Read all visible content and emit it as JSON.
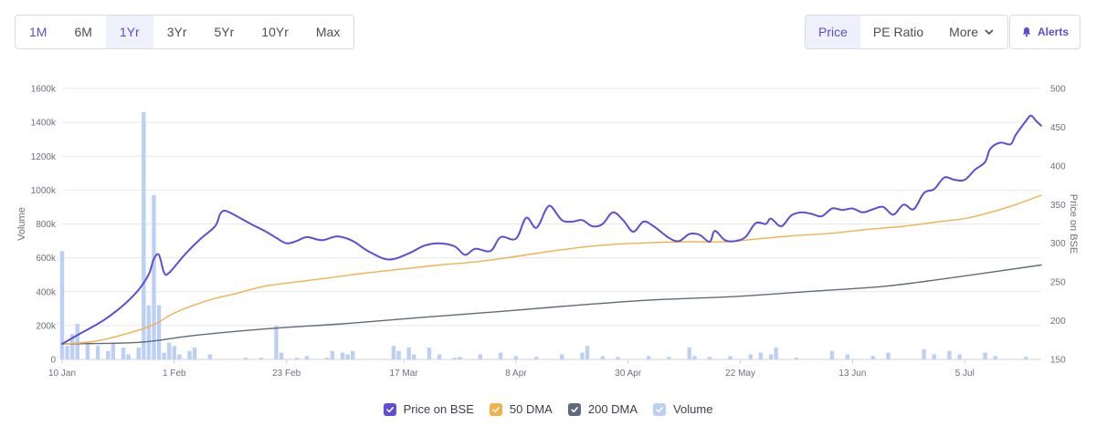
{
  "ranges": [
    "1M",
    "6M",
    "1Yr",
    "3Yr",
    "5Yr",
    "10Yr",
    "Max"
  ],
  "views": {
    "price": "Price",
    "pe": "PE Ratio",
    "more": "More"
  },
  "alerts_label": "Alerts",
  "colors": {
    "price": "#5b4fd8",
    "dma50": "#efb24d",
    "dma200": "#5f6b7a",
    "volume": "#bcd0f7",
    "accent": "#5b4fd8"
  },
  "chart_data": {
    "type": "line",
    "selected_range": "1Yr",
    "selected_view": "Price",
    "x_labels": [
      "10 Jan",
      "1 Feb",
      "23 Feb",
      "17 Mar",
      "8 Apr",
      "30 Apr",
      "22 May",
      "13 Jun",
      "5 Jul"
    ],
    "x_label_dates": [
      "01-10",
      "02-01",
      "02-23",
      "03-17",
      "04-08",
      "04-30",
      "05-22",
      "06-13",
      "07-05"
    ],
    "x_domain": [
      "01-10",
      "07-20"
    ],
    "left_axis": {
      "label": "Volume",
      "min": 0,
      "max": 1600000,
      "ticks": [
        "0",
        "200k",
        "400k",
        "600k",
        "800k",
        "1000k",
        "1200k",
        "1400k",
        "1600k"
      ]
    },
    "right_axis": {
      "label": "Price on BSE",
      "min": 150,
      "max": 500,
      "ticks": [
        "150",
        "200",
        "250",
        "300",
        "350",
        "400",
        "450",
        "500"
      ]
    },
    "grid": true,
    "legend_position": "bottom",
    "series": [
      {
        "name": "Price on BSE",
        "axis": "right",
        "color": "#5b4fd8",
        "points": [
          [
            "01-10",
            170
          ],
          [
            "01-14",
            185
          ],
          [
            "01-18",
            200
          ],
          [
            "01-22",
            220
          ],
          [
            "01-25",
            240
          ],
          [
            "01-27",
            260
          ],
          [
            "01-28",
            280
          ],
          [
            "01-29",
            285
          ],
          [
            "01-30",
            262
          ],
          [
            "01-31",
            262
          ],
          [
            "02-03",
            285
          ],
          [
            "02-06",
            305
          ],
          [
            "02-09",
            322
          ],
          [
            "02-10",
            338
          ],
          [
            "02-11",
            342
          ],
          [
            "02-13",
            336
          ],
          [
            "02-16",
            325
          ],
          [
            "02-19",
            315
          ],
          [
            "02-21",
            307
          ],
          [
            "02-23",
            300
          ],
          [
            "02-25",
            303
          ],
          [
            "02-27",
            308
          ],
          [
            "03-01",
            304
          ],
          [
            "03-04",
            309
          ],
          [
            "03-07",
            303
          ],
          [
            "03-10",
            290
          ],
          [
            "03-14",
            279
          ],
          [
            "03-18",
            287
          ],
          [
            "03-21",
            297
          ],
          [
            "03-24",
            300
          ],
          [
            "03-27",
            296
          ],
          [
            "03-29",
            285
          ],
          [
            "03-31",
            293
          ],
          [
            "04-03",
            290
          ],
          [
            "04-05",
            308
          ],
          [
            "04-08",
            306
          ],
          [
            "04-10",
            333
          ],
          [
            "04-12",
            320
          ],
          [
            "04-14",
            345
          ],
          [
            "04-15",
            347
          ],
          [
            "04-17",
            330
          ],
          [
            "04-19",
            328
          ],
          [
            "04-21",
            330
          ],
          [
            "04-23",
            322
          ],
          [
            "04-25",
            325
          ],
          [
            "04-27",
            340
          ],
          [
            "04-29",
            330
          ],
          [
            "05-01",
            315
          ],
          [
            "05-03",
            328
          ],
          [
            "05-05",
            322
          ],
          [
            "05-08",
            307
          ],
          [
            "05-10",
            303
          ],
          [
            "05-12",
            312
          ],
          [
            "05-14",
            311
          ],
          [
            "05-16",
            302
          ],
          [
            "05-17",
            316
          ],
          [
            "05-19",
            304
          ],
          [
            "05-21",
            303
          ],
          [
            "05-23",
            308
          ],
          [
            "05-25",
            326
          ],
          [
            "05-27",
            325
          ],
          [
            "05-28",
            332
          ],
          [
            "05-30",
            322
          ],
          [
            "06-01",
            336
          ],
          [
            "06-03",
            340
          ],
          [
            "06-05",
            338
          ],
          [
            "06-07",
            335
          ],
          [
            "06-09",
            345
          ],
          [
            "06-11",
            343
          ],
          [
            "06-13",
            345
          ],
          [
            "06-15",
            340
          ],
          [
            "06-17",
            344
          ],
          [
            "06-19",
            347
          ],
          [
            "06-21",
            337
          ],
          [
            "06-23",
            350
          ],
          [
            "06-25",
            344
          ],
          [
            "06-27",
            365
          ],
          [
            "06-29",
            370
          ],
          [
            "07-01",
            385
          ],
          [
            "07-03",
            382
          ],
          [
            "07-05",
            382
          ],
          [
            "07-07",
            395
          ],
          [
            "07-09",
            405
          ],
          [
            "07-10",
            422
          ],
          [
            "07-12",
            430
          ],
          [
            "07-14",
            428
          ],
          [
            "07-15",
            440
          ],
          [
            "07-17",
            458
          ],
          [
            "07-18",
            465
          ],
          [
            "07-19",
            458
          ],
          [
            "07-20",
            452
          ]
        ]
      },
      {
        "name": "50 DMA",
        "axis": "right",
        "color": "#efb24d",
        "points": [
          [
            "01-10",
            170
          ],
          [
            "01-16",
            173
          ],
          [
            "01-22",
            182
          ],
          [
            "01-28",
            195
          ],
          [
            "02-01",
            210
          ],
          [
            "02-07",
            225
          ],
          [
            "02-13",
            235
          ],
          [
            "02-19",
            245
          ],
          [
            "02-25",
            250
          ],
          [
            "03-03",
            256
          ],
          [
            "03-10",
            262
          ],
          [
            "03-17",
            267
          ],
          [
            "03-24",
            272
          ],
          [
            "03-31",
            276
          ],
          [
            "04-07",
            282
          ],
          [
            "04-14",
            289
          ],
          [
            "04-21",
            295
          ],
          [
            "04-28",
            299
          ],
          [
            "05-05",
            301
          ],
          [
            "05-12",
            302
          ],
          [
            "05-19",
            302
          ],
          [
            "05-26",
            306
          ],
          [
            "06-02",
            310
          ],
          [
            "06-09",
            313
          ],
          [
            "06-16",
            318
          ],
          [
            "06-23",
            322
          ],
          [
            "06-30",
            328
          ],
          [
            "07-05",
            332
          ],
          [
            "07-10",
            340
          ],
          [
            "07-15",
            350
          ],
          [
            "07-20",
            362
          ]
        ]
      },
      {
        "name": "200 DMA",
        "axis": "right",
        "color": "#5f6b7a",
        "points": [
          [
            "01-10",
            170
          ],
          [
            "01-25",
            172
          ],
          [
            "02-05",
            181
          ],
          [
            "02-20",
            190
          ],
          [
            "03-05",
            196
          ],
          [
            "03-20",
            204
          ],
          [
            "04-05",
            212
          ],
          [
            "04-20",
            220
          ],
          [
            "05-05",
            227
          ],
          [
            "05-20",
            231
          ],
          [
            "06-05",
            238
          ],
          [
            "06-20",
            245
          ],
          [
            "07-05",
            258
          ],
          [
            "07-20",
            272
          ]
        ]
      }
    ],
    "volume": {
      "name": "Volume",
      "axis": "left",
      "color": "#bcd0f7",
      "bars": [
        [
          "01-10",
          640000
        ],
        [
          "01-11",
          80000
        ],
        [
          "01-12",
          150000
        ],
        [
          "01-13",
          210000
        ],
        [
          "01-15",
          90000
        ],
        [
          "01-17",
          80000
        ],
        [
          "01-19",
          50000
        ],
        [
          "01-20",
          100000
        ],
        [
          "01-22",
          70000
        ],
        [
          "01-23",
          30000
        ],
        [
          "01-25",
          70000
        ],
        [
          "01-26",
          1460000
        ],
        [
          "01-27",
          320000
        ],
        [
          "01-28",
          970000
        ],
        [
          "01-29",
          320000
        ],
        [
          "01-30",
          40000
        ],
        [
          "01-31",
          100000
        ],
        [
          "02-01",
          80000
        ],
        [
          "02-02",
          30000
        ],
        [
          "02-04",
          50000
        ],
        [
          "02-05",
          70000
        ],
        [
          "02-08",
          30000
        ],
        [
          "02-15",
          10000
        ],
        [
          "02-18",
          10000
        ],
        [
          "02-21",
          200000
        ],
        [
          "02-22",
          40000
        ],
        [
          "02-25",
          10000
        ],
        [
          "02-27",
          20000
        ],
        [
          "03-02",
          10000
        ],
        [
          "03-03",
          50000
        ],
        [
          "03-05",
          40000
        ],
        [
          "03-06",
          30000
        ],
        [
          "03-07",
          50000
        ],
        [
          "03-15",
          80000
        ],
        [
          "03-16",
          50000
        ],
        [
          "03-18",
          70000
        ],
        [
          "03-19",
          30000
        ],
        [
          "03-22",
          70000
        ],
        [
          "03-24",
          30000
        ],
        [
          "03-27",
          10000
        ],
        [
          "03-28",
          15000
        ],
        [
          "04-01",
          30000
        ],
        [
          "04-05",
          40000
        ],
        [
          "04-08",
          20000
        ],
        [
          "04-12",
          15000
        ],
        [
          "04-17",
          30000
        ],
        [
          "04-21",
          40000
        ],
        [
          "04-22",
          80000
        ],
        [
          "04-25",
          20000
        ],
        [
          "04-28",
          15000
        ],
        [
          "05-04",
          20000
        ],
        [
          "05-08",
          15000
        ],
        [
          "05-12",
          70000
        ],
        [
          "05-13",
          20000
        ],
        [
          "05-16",
          15000
        ],
        [
          "05-20",
          20000
        ],
        [
          "05-24",
          30000
        ],
        [
          "05-26",
          40000
        ],
        [
          "05-28",
          30000
        ],
        [
          "05-29",
          70000
        ],
        [
          "06-02",
          10000
        ],
        [
          "06-09",
          50000
        ],
        [
          "06-12",
          30000
        ],
        [
          "06-17",
          20000
        ],
        [
          "06-20",
          40000
        ],
        [
          "06-27",
          60000
        ],
        [
          "06-29",
          30000
        ],
        [
          "07-02",
          50000
        ],
        [
          "07-04",
          30000
        ],
        [
          "07-09",
          40000
        ],
        [
          "07-11",
          20000
        ],
        [
          "07-17",
          15000
        ]
      ]
    }
  }
}
